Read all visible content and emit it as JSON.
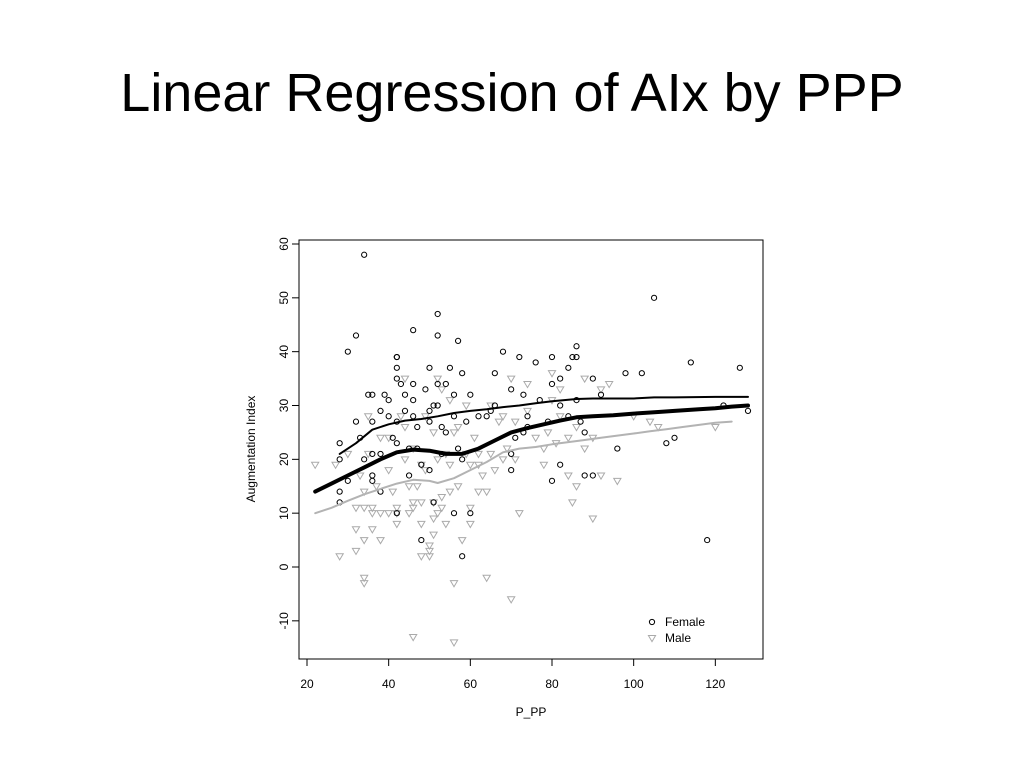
{
  "slide": {
    "title": "Linear Regression of AIx by PPP"
  },
  "chart_data": {
    "type": "scatter",
    "title": "Linear Regression of AIx by PPP",
    "xlabel": "P_PP",
    "ylabel": "Augmentation Index",
    "xlim": [
      20,
      130
    ],
    "ylim": [
      -17,
      61
    ],
    "xticks": [
      20,
      40,
      60,
      80,
      100,
      120
    ],
    "yticks": [
      -10,
      0,
      10,
      20,
      30,
      40,
      50,
      60
    ],
    "grid": false,
    "legend_position": "bottom-right",
    "series": [
      {
        "name": "Female",
        "marker": "circle",
        "color": "#000000",
        "points": [
          [
            34,
            58
          ],
          [
            30,
            40
          ],
          [
            32,
            43
          ],
          [
            28,
            23
          ],
          [
            28,
            20
          ],
          [
            28,
            14
          ],
          [
            28,
            12
          ],
          [
            30,
            16
          ],
          [
            32,
            27
          ],
          [
            33,
            24
          ],
          [
            34,
            20
          ],
          [
            35,
            32
          ],
          [
            36,
            32
          ],
          [
            36,
            27
          ],
          [
            36,
            21
          ],
          [
            36,
            17
          ],
          [
            36,
            16
          ],
          [
            38,
            29
          ],
          [
            38,
            21
          ],
          [
            38,
            14
          ],
          [
            39,
            32
          ],
          [
            40,
            31
          ],
          [
            40,
            28
          ],
          [
            41,
            24
          ],
          [
            42,
            39
          ],
          [
            42,
            39
          ],
          [
            42,
            37
          ],
          [
            42,
            35
          ],
          [
            42,
            27
          ],
          [
            42,
            23
          ],
          [
            42,
            10
          ],
          [
            43,
            34
          ],
          [
            44,
            32
          ],
          [
            44,
            29
          ],
          [
            45,
            22
          ],
          [
            45,
            17
          ],
          [
            46,
            44
          ],
          [
            46,
            34
          ],
          [
            46,
            31
          ],
          [
            46,
            28
          ],
          [
            47,
            26
          ],
          [
            47,
            22
          ],
          [
            48,
            19
          ],
          [
            48,
            5
          ],
          [
            49,
            33
          ],
          [
            50,
            37
          ],
          [
            50,
            29
          ],
          [
            50,
            27
          ],
          [
            50,
            18
          ],
          [
            51,
            30
          ],
          [
            51,
            12
          ],
          [
            52,
            47
          ],
          [
            52,
            43
          ],
          [
            52,
            34
          ],
          [
            52,
            30
          ],
          [
            53,
            26
          ],
          [
            53,
            21
          ],
          [
            54,
            34
          ],
          [
            54,
            25
          ],
          [
            55,
            37
          ],
          [
            56,
            32
          ],
          [
            56,
            28
          ],
          [
            56,
            10
          ],
          [
            57,
            42
          ],
          [
            57,
            22
          ],
          [
            58,
            36
          ],
          [
            58,
            20
          ],
          [
            58,
            2
          ],
          [
            59,
            27
          ],
          [
            60,
            32
          ],
          [
            60,
            10
          ],
          [
            62,
            28
          ],
          [
            64,
            28
          ],
          [
            65,
            29
          ],
          [
            66,
            36
          ],
          [
            66,
            30
          ],
          [
            68,
            40
          ],
          [
            70,
            33
          ],
          [
            70,
            21
          ],
          [
            70,
            18
          ],
          [
            71,
            24
          ],
          [
            72,
            39
          ],
          [
            73,
            32
          ],
          [
            73,
            25
          ],
          [
            74,
            28
          ],
          [
            74,
            26
          ],
          [
            76,
            38
          ],
          [
            77,
            31
          ],
          [
            79,
            27
          ],
          [
            80,
            39
          ],
          [
            80,
            34
          ],
          [
            80,
            16
          ],
          [
            82,
            35
          ],
          [
            82,
            30
          ],
          [
            82,
            19
          ],
          [
            84,
            37
          ],
          [
            84,
            28
          ],
          [
            85,
            39
          ],
          [
            86,
            41
          ],
          [
            86,
            39
          ],
          [
            86,
            31
          ],
          [
            87,
            27
          ],
          [
            88,
            17
          ],
          [
            88,
            25
          ],
          [
            90,
            35
          ],
          [
            90,
            17
          ],
          [
            92,
            32
          ],
          [
            96,
            22
          ],
          [
            98,
            36
          ],
          [
            102,
            36
          ],
          [
            105,
            50
          ],
          [
            108,
            23
          ],
          [
            110,
            24
          ],
          [
            114,
            38
          ],
          [
            118,
            5
          ],
          [
            122,
            30
          ],
          [
            126,
            37
          ],
          [
            128,
            29
          ]
        ]
      },
      {
        "name": "Male",
        "marker": "triangle",
        "color": "#aaaaaa",
        "points": [
          [
            22,
            19
          ],
          [
            27,
            19
          ],
          [
            28,
            2
          ],
          [
            30,
            21
          ],
          [
            32,
            11
          ],
          [
            32,
            7
          ],
          [
            32,
            3
          ],
          [
            33,
            17
          ],
          [
            34,
            14
          ],
          [
            34,
            11
          ],
          [
            34,
            5
          ],
          [
            34,
            -2
          ],
          [
            34,
            -3
          ],
          [
            35,
            28
          ],
          [
            35,
            21
          ],
          [
            36,
            11
          ],
          [
            36,
            10
          ],
          [
            36,
            7
          ],
          [
            37,
            15
          ],
          [
            38,
            24
          ],
          [
            38,
            10
          ],
          [
            38,
            5
          ],
          [
            40,
            24
          ],
          [
            40,
            18
          ],
          [
            40,
            10
          ],
          [
            41,
            14
          ],
          [
            42,
            11
          ],
          [
            42,
            10
          ],
          [
            42,
            8
          ],
          [
            43,
            28
          ],
          [
            44,
            35
          ],
          [
            44,
            26
          ],
          [
            44,
            20
          ],
          [
            45,
            15
          ],
          [
            45,
            10
          ],
          [
            46,
            -13
          ],
          [
            46,
            22
          ],
          [
            46,
            12
          ],
          [
            46,
            11
          ],
          [
            47,
            15
          ],
          [
            48,
            19
          ],
          [
            48,
            12
          ],
          [
            48,
            8
          ],
          [
            48,
            2
          ],
          [
            49,
            28
          ],
          [
            49,
            18
          ],
          [
            50,
            4
          ],
          [
            50,
            3
          ],
          [
            50,
            2
          ],
          [
            51,
            25
          ],
          [
            51,
            12
          ],
          [
            51,
            9
          ],
          [
            51,
            6
          ],
          [
            52,
            35
          ],
          [
            52,
            20
          ],
          [
            52,
            10
          ],
          [
            53,
            33
          ],
          [
            53,
            13
          ],
          [
            53,
            11
          ],
          [
            54,
            21
          ],
          [
            54,
            8
          ],
          [
            55,
            31
          ],
          [
            55,
            19
          ],
          [
            55,
            14
          ],
          [
            56,
            -3
          ],
          [
            56,
            -14
          ],
          [
            56,
            25
          ],
          [
            57,
            26
          ],
          [
            57,
            15
          ],
          [
            58,
            5
          ],
          [
            59,
            30
          ],
          [
            59,
            21
          ],
          [
            60,
            19
          ],
          [
            60,
            11
          ],
          [
            60,
            8
          ],
          [
            61,
            24
          ],
          [
            62,
            21
          ],
          [
            62,
            19
          ],
          [
            62,
            14
          ],
          [
            63,
            17
          ],
          [
            64,
            -2
          ],
          [
            64,
            14
          ],
          [
            65,
            30
          ],
          [
            65,
            21
          ],
          [
            66,
            18
          ],
          [
            67,
            27
          ],
          [
            68,
            28
          ],
          [
            68,
            20
          ],
          [
            69,
            22
          ],
          [
            70,
            -6
          ],
          [
            70,
            35
          ],
          [
            71,
            27
          ],
          [
            71,
            20
          ],
          [
            72,
            10
          ],
          [
            74,
            34
          ],
          [
            74,
            29
          ],
          [
            76,
            24
          ],
          [
            78,
            22
          ],
          [
            78,
            19
          ],
          [
            79,
            25
          ],
          [
            80,
            36
          ],
          [
            80,
            31
          ],
          [
            81,
            23
          ],
          [
            82,
            33
          ],
          [
            82,
            28
          ],
          [
            84,
            24
          ],
          [
            84,
            17
          ],
          [
            85,
            12
          ],
          [
            86,
            15
          ],
          [
            86,
            26
          ],
          [
            88,
            35
          ],
          [
            88,
            22
          ],
          [
            90,
            9
          ],
          [
            90,
            24
          ],
          [
            92,
            33
          ],
          [
            92,
            17
          ],
          [
            94,
            34
          ],
          [
            96,
            16
          ],
          [
            100,
            28
          ],
          [
            104,
            27
          ],
          [
            106,
            26
          ],
          [
            120,
            26
          ]
        ]
      }
    ],
    "lines": [
      {
        "name": "",
        "color": "#000000",
        "width": 2,
        "points": [
          [
            28,
            21
          ],
          [
            32,
            23
          ],
          [
            36,
            25.5
          ],
          [
            40,
            26.5
          ],
          [
            44,
            27.2
          ],
          [
            48,
            27.5
          ],
          [
            52,
            28
          ],
          [
            56,
            28.6
          ],
          [
            60,
            29
          ],
          [
            64,
            29.3
          ],
          [
            68,
            29.7
          ],
          [
            72,
            30
          ],
          [
            76,
            30.4
          ],
          [
            80,
            30.8
          ],
          [
            86,
            31.2
          ],
          [
            90,
            31.3
          ],
          [
            100,
            31.3
          ],
          [
            105,
            31.5
          ],
          [
            110,
            31.5
          ],
          [
            120,
            31.6
          ],
          [
            128,
            31.6
          ]
        ]
      },
      {
        "name": "",
        "color": "#000000",
        "width": 4,
        "points": [
          [
            22,
            14
          ],
          [
            26,
            15.5
          ],
          [
            30,
            17
          ],
          [
            34,
            18.5
          ],
          [
            38,
            20
          ],
          [
            42,
            21.3
          ],
          [
            46,
            21.8
          ],
          [
            50,
            21.6
          ],
          [
            54,
            21
          ],
          [
            58,
            21
          ],
          [
            62,
            22
          ],
          [
            66,
            23.5
          ],
          [
            70,
            25
          ],
          [
            74,
            25.8
          ],
          [
            78,
            26.5
          ],
          [
            82,
            27.2
          ],
          [
            86,
            27.8
          ],
          [
            90,
            28
          ],
          [
            95,
            28.2
          ],
          [
            100,
            28.5
          ],
          [
            106,
            28.8
          ],
          [
            110,
            29
          ],
          [
            116,
            29.3
          ],
          [
            120,
            29.5
          ],
          [
            124,
            29.8
          ],
          [
            128,
            30
          ]
        ]
      },
      {
        "name": "",
        "color": "#b3b3b3",
        "width": 2,
        "points": [
          [
            22,
            10
          ],
          [
            26,
            11
          ],
          [
            30,
            12.3
          ],
          [
            34,
            13.5
          ],
          [
            38,
            14.5
          ],
          [
            42,
            15.5
          ],
          [
            46,
            16.2
          ],
          [
            50,
            16
          ],
          [
            52,
            15.6
          ],
          [
            56,
            16.5
          ],
          [
            60,
            18
          ],
          [
            64,
            19.5
          ],
          [
            68,
            21.3
          ],
          [
            72,
            22
          ],
          [
            76,
            22.3
          ],
          [
            80,
            22.8
          ],
          [
            84,
            23.2
          ],
          [
            88,
            23.6
          ],
          [
            92,
            24
          ],
          [
            96,
            24.4
          ],
          [
            100,
            24.8
          ],
          [
            104,
            25.2
          ],
          [
            108,
            25.6
          ],
          [
            112,
            26
          ],
          [
            116,
            26.4
          ],
          [
            120,
            26.8
          ],
          [
            124,
            27
          ]
        ]
      }
    ],
    "legend": [
      {
        "label": "Female",
        "marker": "circle",
        "color": "#000000"
      },
      {
        "label": "Male",
        "marker": "triangle",
        "color": "#aaaaaa"
      }
    ]
  }
}
